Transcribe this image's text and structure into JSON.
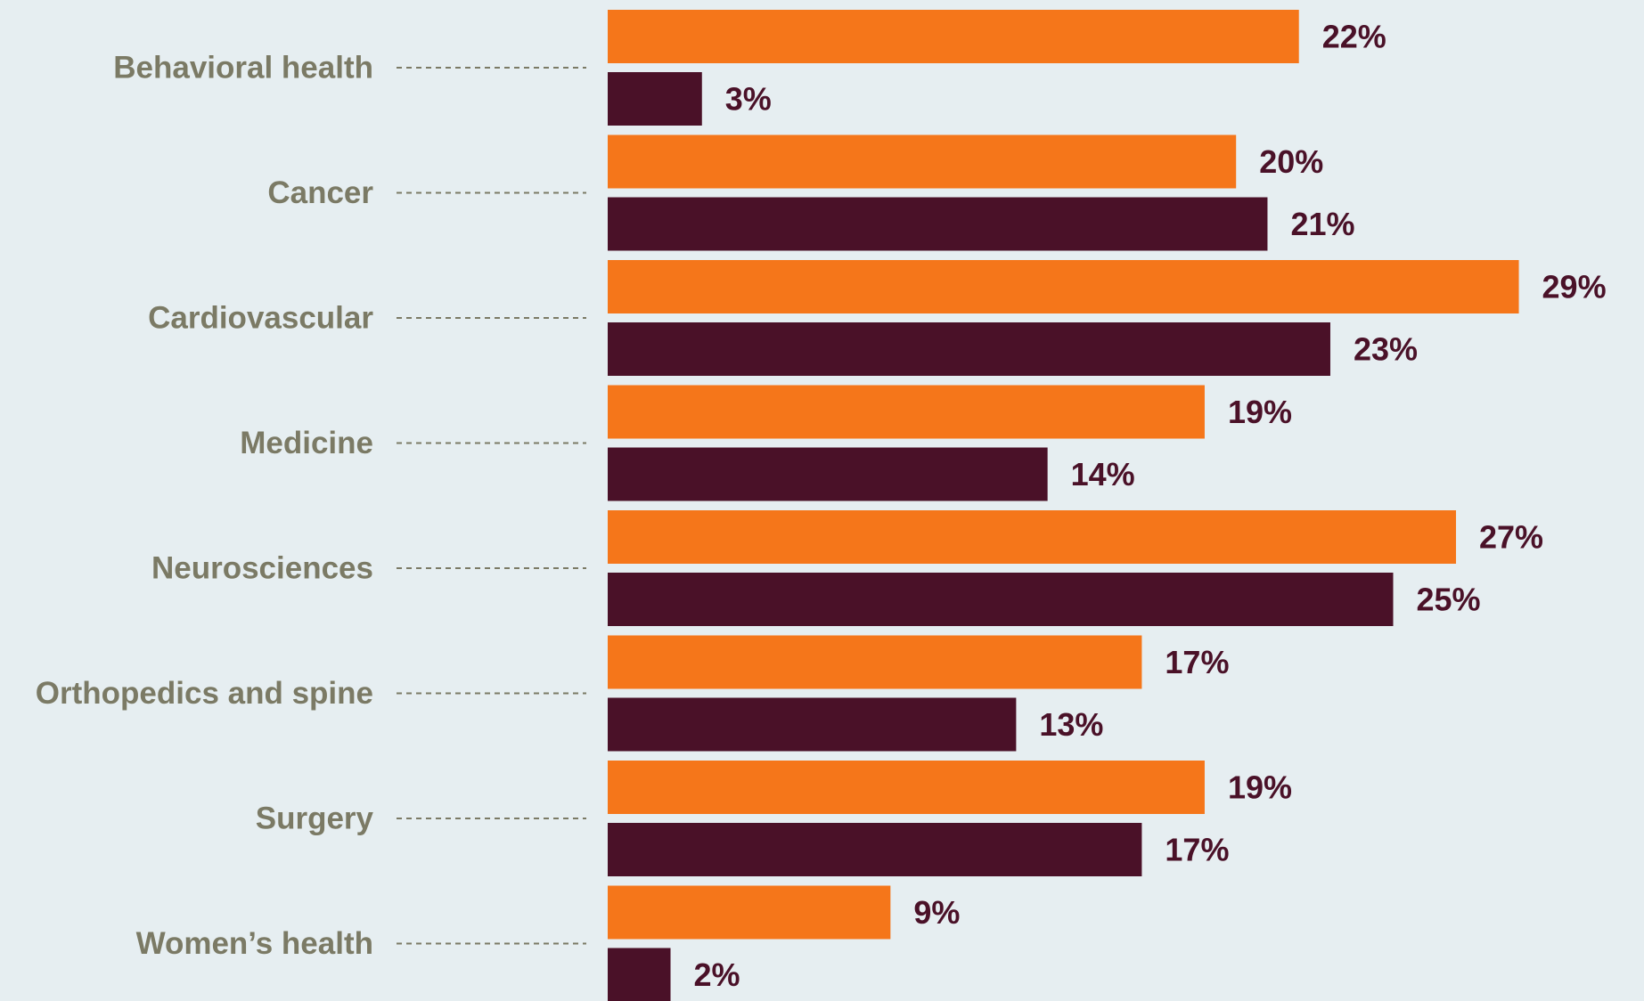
{
  "chart_data": {
    "type": "bar",
    "orientation": "horizontal",
    "categories": [
      "Behavioral health",
      "Cancer",
      "Cardiovascular",
      "Medicine",
      "Neurosciences",
      "Orthopedics and spine",
      "Surgery",
      "Women’s health"
    ],
    "series": [
      {
        "values": [
          22,
          20,
          29,
          19,
          27,
          17,
          19,
          9
        ],
        "labels": [
          "22%",
          "20%",
          "29%",
          "19%",
          "27%",
          "17%",
          "19%",
          "9%"
        ],
        "color": "#f5761a"
      },
      {
        "values": [
          3,
          21,
          23,
          14,
          25,
          13,
          17,
          2
        ],
        "labels": [
          "3%",
          "21%",
          "23%",
          "14%",
          "25%",
          "13%",
          "17%",
          "2%"
        ],
        "color": "#4a1128"
      }
    ],
    "value_unit": "%",
    "xlim": [
      0,
      29
    ],
    "grid": false,
    "legend": "none"
  },
  "colors": {
    "background": "#e6eef1",
    "category_label": "#7b7a65",
    "value_label": "#4a1128",
    "leader_line": "#7b7a65"
  }
}
